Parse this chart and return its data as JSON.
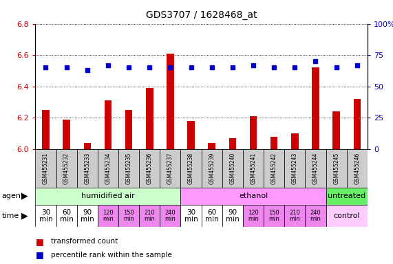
{
  "title": "GDS3707 / 1628468_at",
  "samples": [
    "GSM455231",
    "GSM455232",
    "GSM455233",
    "GSM455234",
    "GSM455235",
    "GSM455236",
    "GSM455237",
    "GSM455238",
    "GSM455239",
    "GSM455240",
    "GSM455241",
    "GSM455242",
    "GSM455243",
    "GSM455244",
    "GSM455245",
    "GSM455246"
  ],
  "bar_values": [
    6.25,
    6.19,
    6.04,
    6.31,
    6.25,
    6.39,
    6.61,
    6.18,
    6.04,
    6.07,
    6.21,
    6.08,
    6.1,
    6.52,
    6.24,
    6.32
  ],
  "dot_values": [
    65,
    65,
    63,
    67,
    65,
    65,
    65,
    65,
    65,
    65,
    67,
    65,
    65,
    70,
    65,
    67
  ],
  "ylim": [
    6.0,
    6.8
  ],
  "y2lim": [
    0,
    100
  ],
  "yticks": [
    6.0,
    6.2,
    6.4,
    6.6,
    6.8
  ],
  "y2ticks": [
    0,
    25,
    50,
    75,
    100
  ],
  "bar_color": "#cc0000",
  "dot_color": "#0000cc",
  "bar_baseline": 6.0,
  "agent_groups": [
    {
      "label": "humidified air",
      "start": 0,
      "end": 7,
      "color": "#ccffcc"
    },
    {
      "label": "ethanol",
      "start": 7,
      "end": 14,
      "color": "#ff99ff"
    },
    {
      "label": "untreated",
      "start": 14,
      "end": 16,
      "color": "#66ee66"
    }
  ],
  "time_bg_colors": [
    "#ffffff",
    "#ffffff",
    "#ffffff",
    "#ee88ee",
    "#ee88ee",
    "#ee88ee",
    "#ee88ee",
    "#ffffff",
    "#ffffff",
    "#ffffff",
    "#ee88ee",
    "#ee88ee",
    "#ee88ee",
    "#ee88ee"
  ],
  "time_labels_14": [
    "30\nmin",
    "60\nmin",
    "90\nmin",
    "120\nmin",
    "150\nmin",
    "210\nmin",
    "240\nmin",
    "30\nmin",
    "60\nmin",
    "90\nmin",
    "120\nmin",
    "150\nmin",
    "210\nmin",
    "240\nmin"
  ],
  "control_bg": "#ffccff",
  "control_label": "control",
  "agent_label": "agent",
  "time_label": "time",
  "legend_bar": "transformed count",
  "legend_dot": "percentile rank within the sample",
  "left_color": "#cc0000",
  "right_color": "#0000cc",
  "sample_label_bg": "#cccccc"
}
